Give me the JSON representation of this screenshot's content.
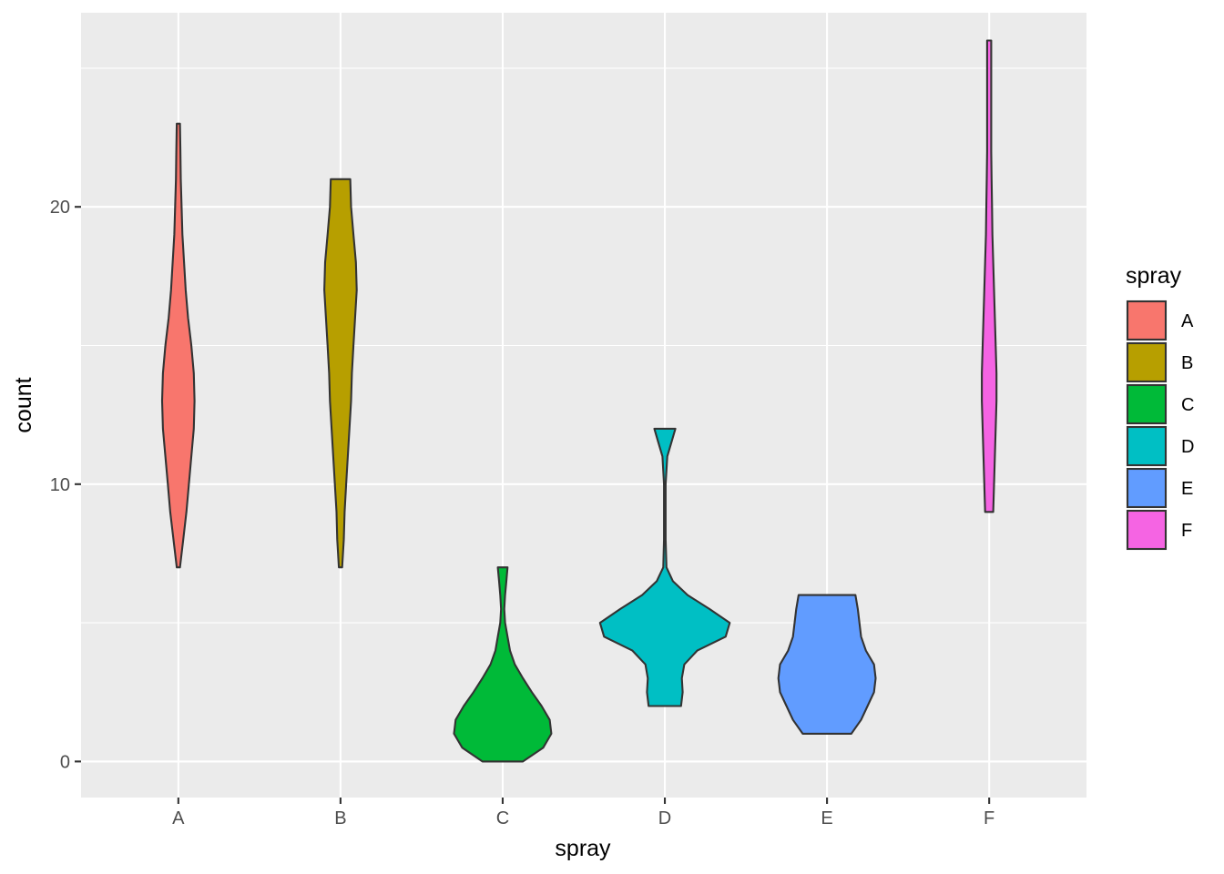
{
  "chart_data": {
    "type": "violin",
    "categories": [
      "A",
      "B",
      "C",
      "D",
      "E",
      "F"
    ],
    "xlabel": "spray",
    "ylabel": "count",
    "ylim": [
      -1.3,
      27
    ],
    "yticks": [
      0,
      10,
      20
    ],
    "grid": true,
    "legend": {
      "title": "spray",
      "position": "right",
      "labels": [
        "A",
        "B",
        "C",
        "D",
        "E",
        "F"
      ]
    },
    "colors": [
      "#F8766D",
      "#B79F00",
      "#00BA38",
      "#00BFC4",
      "#619CFF",
      "#F564E3"
    ],
    "series": [
      {
        "name": "A",
        "range": [
          7,
          23
        ],
        "profile": [
          [
            7,
            0.02
          ],
          [
            8,
            0.06
          ],
          [
            9,
            0.1
          ],
          [
            10,
            0.13
          ],
          [
            11,
            0.16
          ],
          [
            12,
            0.19
          ],
          [
            13,
            0.2
          ],
          [
            14,
            0.19
          ],
          [
            15,
            0.16
          ],
          [
            16,
            0.12
          ],
          [
            17,
            0.09
          ],
          [
            18,
            0.07
          ],
          [
            19,
            0.05
          ],
          [
            20,
            0.04
          ],
          [
            21,
            0.03
          ],
          [
            22,
            0.025
          ],
          [
            23,
            0.02
          ]
        ]
      },
      {
        "name": "B",
        "range": [
          7,
          21
        ],
        "profile": [
          [
            7,
            0.02
          ],
          [
            8,
            0.04
          ],
          [
            9,
            0.05
          ],
          [
            10,
            0.07
          ],
          [
            11,
            0.09
          ],
          [
            12,
            0.11
          ],
          [
            13,
            0.13
          ],
          [
            14,
            0.14
          ],
          [
            15,
            0.16
          ],
          [
            16,
            0.18
          ],
          [
            17,
            0.2
          ],
          [
            18,
            0.19
          ],
          [
            19,
            0.16
          ],
          [
            20,
            0.13
          ],
          [
            21,
            0.12
          ]
        ]
      },
      {
        "name": "C",
        "range": [
          0,
          7
        ],
        "profile": [
          [
            0,
            0.25
          ],
          [
            0.5,
            0.5
          ],
          [
            1,
            0.6
          ],
          [
            1.5,
            0.58
          ],
          [
            2,
            0.48
          ],
          [
            2.5,
            0.36
          ],
          [
            3,
            0.25
          ],
          [
            3.5,
            0.15
          ],
          [
            4,
            0.09
          ],
          [
            4.5,
            0.06
          ],
          [
            5,
            0.03
          ],
          [
            5.5,
            0.02
          ],
          [
            6,
            0.03
          ],
          [
            6.5,
            0.045
          ],
          [
            7,
            0.06
          ]
        ]
      },
      {
        "name": "D",
        "range": [
          2,
          12
        ],
        "profile": [
          [
            2,
            0.2
          ],
          [
            2.5,
            0.22
          ],
          [
            3,
            0.21
          ],
          [
            3.5,
            0.24
          ],
          [
            4,
            0.4
          ],
          [
            4.5,
            0.75
          ],
          [
            5,
            0.8
          ],
          [
            5.5,
            0.55
          ],
          [
            6,
            0.28
          ],
          [
            6.5,
            0.1
          ],
          [
            7,
            0.02
          ],
          [
            8,
            0.01
          ],
          [
            9,
            0.01
          ],
          [
            10,
            0.01
          ],
          [
            11,
            0.03
          ],
          [
            11.5,
            0.08
          ],
          [
            12,
            0.13
          ]
        ]
      },
      {
        "name": "E",
        "range": [
          1,
          6
        ],
        "profile": [
          [
            1,
            0.3
          ],
          [
            1.5,
            0.42
          ],
          [
            2,
            0.5
          ],
          [
            2.5,
            0.58
          ],
          [
            3,
            0.6
          ],
          [
            3.5,
            0.58
          ],
          [
            4,
            0.48
          ],
          [
            4.5,
            0.42
          ],
          [
            5,
            0.4
          ],
          [
            5.5,
            0.38
          ],
          [
            6,
            0.35
          ]
        ]
      },
      {
        "name": "F",
        "range": [
          9,
          26
        ],
        "profile": [
          [
            9,
            0.05
          ],
          [
            10,
            0.06
          ],
          [
            11,
            0.07
          ],
          [
            12,
            0.08
          ],
          [
            13,
            0.09
          ],
          [
            14,
            0.09
          ],
          [
            15,
            0.08
          ],
          [
            16,
            0.07
          ],
          [
            17,
            0.06
          ],
          [
            18,
            0.05
          ],
          [
            19,
            0.04
          ],
          [
            20,
            0.035
          ],
          [
            21,
            0.03
          ],
          [
            22,
            0.025
          ],
          [
            23,
            0.025
          ],
          [
            24,
            0.025
          ],
          [
            25,
            0.025
          ],
          [
            26,
            0.025
          ]
        ]
      }
    ]
  }
}
